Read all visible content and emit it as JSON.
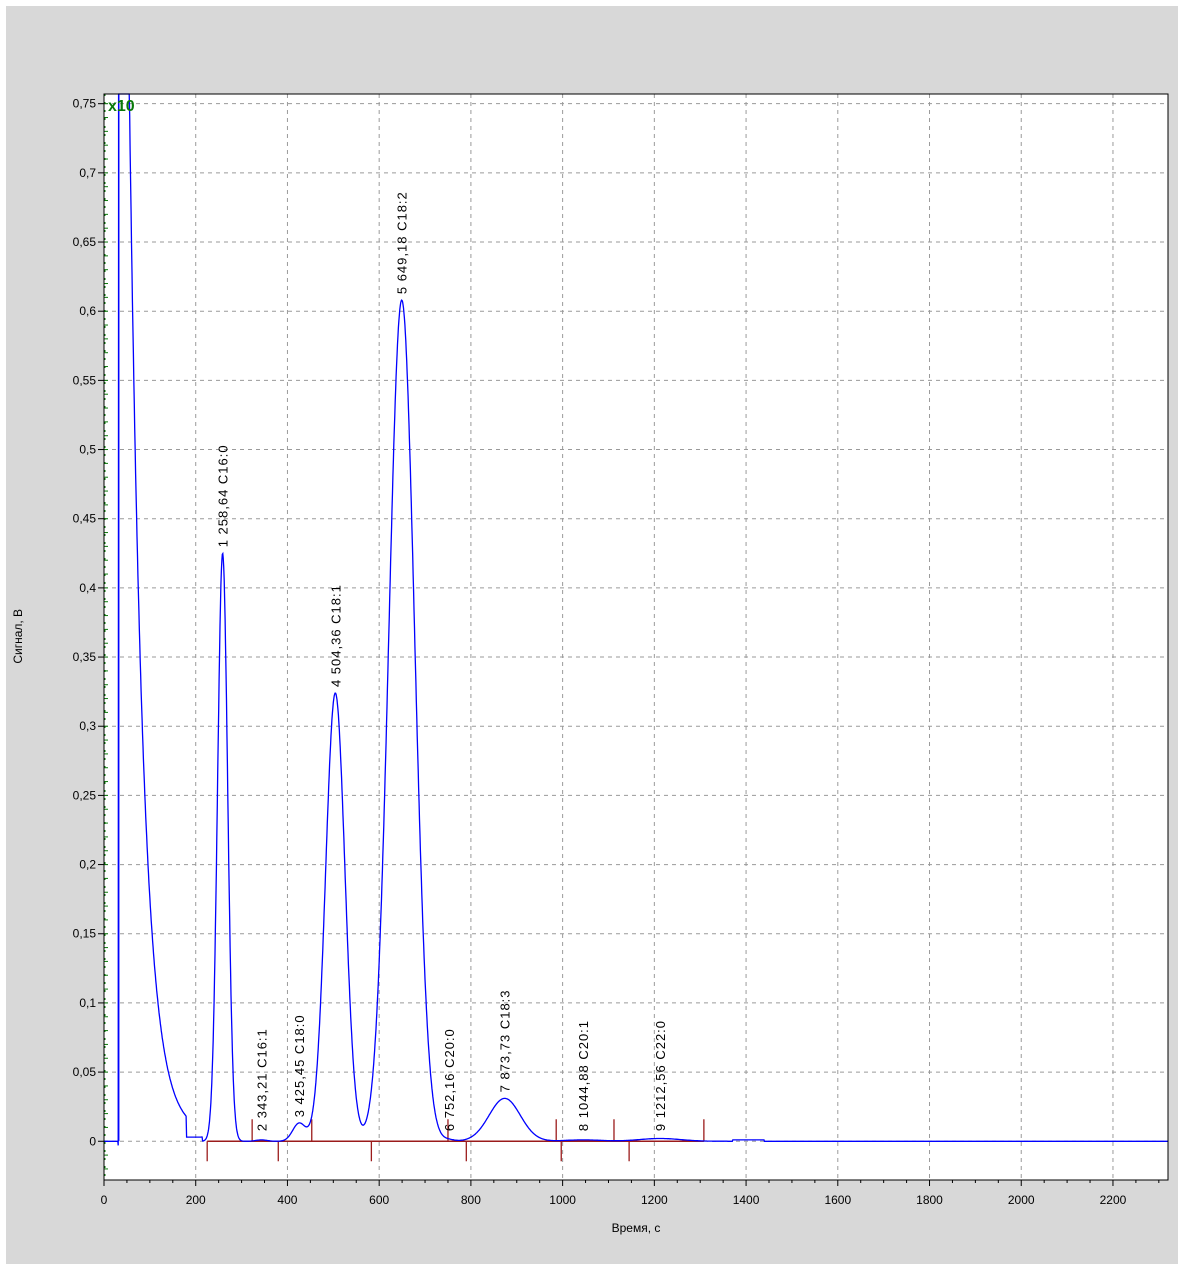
{
  "chart_data": {
    "type": "line",
    "title": "",
    "xlabel": "Время, с",
    "ylabel": "Сигнал, В",
    "xlim": [
      0,
      2320
    ],
    "ylim": [
      -0.028,
      0.757
    ],
    "x_ticks": [
      0,
      200,
      400,
      600,
      800,
      1000,
      1200,
      1400,
      1600,
      1800,
      2000,
      2200
    ],
    "x_tick_labels": [
      "0",
      "200",
      "400",
      "600",
      "800",
      "1000",
      "1200",
      "1400",
      "1600",
      "1800",
      "2000",
      "2200"
    ],
    "y_ticks": [
      0,
      0.05,
      0.1,
      0.15,
      0.2,
      0.25,
      0.3,
      0.35,
      0.4,
      0.45,
      0.5,
      0.55,
      0.6,
      0.65,
      0.7,
      0.75
    ],
    "y_tick_labels": [
      "0",
      "0,05",
      "0,1",
      "0,15",
      "0,2",
      "0,25",
      "0,3",
      "0,35",
      "0,4",
      "0,45",
      "0,5",
      "0,55",
      "0,6",
      "0,65",
      "0,7",
      "0,75"
    ],
    "zoom_label": "x10",
    "grid": true,
    "line_color": "#0000ff",
    "baseline_color": "#9b1b1b",
    "zoom_color": "#0a7a0a",
    "peaks": [
      {
        "label": "1  258,64  C16:0",
        "rt": 258.64,
        "height": 0.425,
        "sigma": 11
      },
      {
        "label": "2  343,21  C16:1",
        "rt": 343.21,
        "height": 0.001,
        "sigma": 12
      },
      {
        "label": "3  425,45  C18:0",
        "rt": 425.45,
        "height": 0.013,
        "sigma": 14
      },
      {
        "label": "4  504,36  C18:1",
        "rt": 504.36,
        "height": 0.324,
        "sigma": 21
      },
      {
        "label": "5  649,18  C18:2",
        "rt": 649.18,
        "height": 0.608,
        "sigma": 28
      },
      {
        "label": "6  752,16  C20:0",
        "rt": 752.16,
        "height": 0.001,
        "sigma": 12
      },
      {
        "label": "7  873,73  C18:3",
        "rt": 873.73,
        "height": 0.031,
        "sigma": 34
      },
      {
        "label": "8  1044,88  C20:1",
        "rt": 1044.88,
        "height": 0.001,
        "sigma": 40
      },
      {
        "label": "9  1212,56  C22:0",
        "rt": 1212.56,
        "height": 0.002,
        "sigma": 45
      }
    ],
    "integration_markers": [
      225,
      323,
      380,
      453,
      583,
      750,
      790,
      986,
      997,
      1112,
      1145,
      1308
    ]
  }
}
